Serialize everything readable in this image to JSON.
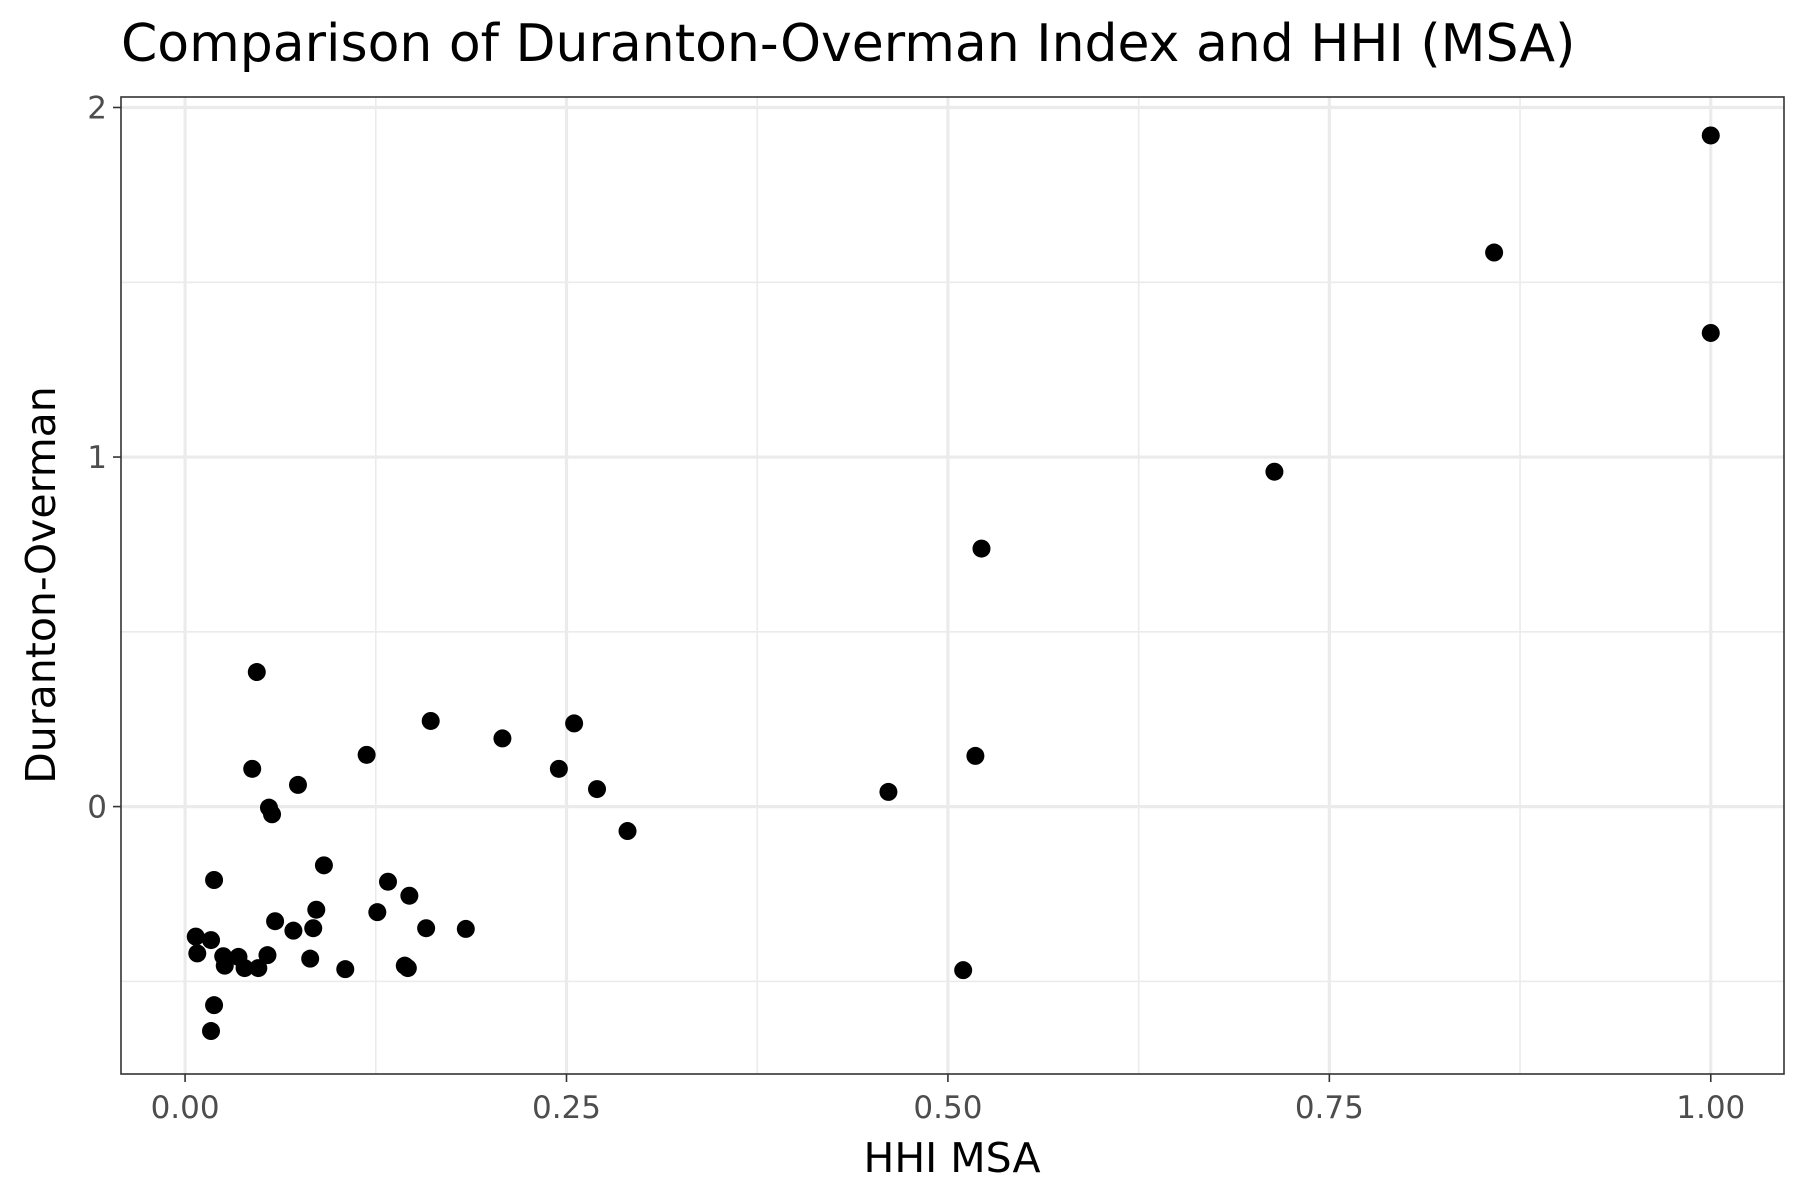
{
  "chart_data": {
    "type": "scatter",
    "title": "Comparison of Duranton-Overman Index and HHI (MSA)",
    "xlabel": "HHI MSA",
    "ylabel": "Duranton-Overman",
    "xlim": [
      -0.042,
      1.048
    ],
    "ylim": [
      -0.765,
      2.03
    ],
    "x_ticks": [
      0.0,
      0.25,
      0.5,
      0.75,
      1.0
    ],
    "x_tick_labels": [
      "0.00",
      "0.25",
      "0.50",
      "0.75",
      "1.00"
    ],
    "x_minor_ticks": [
      0.125,
      0.375,
      0.625,
      0.875
    ],
    "y_ticks": [
      0,
      1,
      2
    ],
    "y_tick_labels": [
      "0",
      "1",
      "2"
    ],
    "y_minor_ticks": [
      -0.5,
      0.5,
      1.5
    ],
    "grid": true,
    "point_color": "#000000",
    "points": [
      {
        "x": 1.0,
        "y": 1.92
      },
      {
        "x": 0.858,
        "y": 1.585
      },
      {
        "x": 1.0,
        "y": 1.355
      },
      {
        "x": 0.714,
        "y": 0.958
      },
      {
        "x": 0.522,
        "y": 0.738
      },
      {
        "x": 0.518,
        "y": 0.145
      },
      {
        "x": 0.461,
        "y": 0.042
      },
      {
        "x": 0.51,
        "y": -0.468
      },
      {
        "x": 0.047,
        "y": 0.385
      },
      {
        "x": 0.161,
        "y": 0.245
      },
      {
        "x": 0.255,
        "y": 0.238
      },
      {
        "x": 0.208,
        "y": 0.195
      },
      {
        "x": 0.119,
        "y": 0.148
      },
      {
        "x": 0.044,
        "y": 0.108
      },
      {
        "x": 0.245,
        "y": 0.108
      },
      {
        "x": 0.074,
        "y": 0.062
      },
      {
        "x": 0.27,
        "y": 0.05
      },
      {
        "x": 0.055,
        "y": -0.003
      },
      {
        "x": 0.057,
        "y": -0.022
      },
      {
        "x": 0.29,
        "y": -0.07
      },
      {
        "x": 0.091,
        "y": -0.168
      },
      {
        "x": 0.019,
        "y": -0.21
      },
      {
        "x": 0.133,
        "y": -0.215
      },
      {
        "x": 0.147,
        "y": -0.255
      },
      {
        "x": 0.086,
        "y": -0.295
      },
      {
        "x": 0.126,
        "y": -0.302
      },
      {
        "x": 0.059,
        "y": -0.328
      },
      {
        "x": 0.084,
        "y": -0.348
      },
      {
        "x": 0.158,
        "y": -0.348
      },
      {
        "x": 0.184,
        "y": -0.35
      },
      {
        "x": 0.071,
        "y": -0.355
      },
      {
        "x": 0.007,
        "y": -0.372
      },
      {
        "x": 0.017,
        "y": -0.382
      },
      {
        "x": 0.008,
        "y": -0.42
      },
      {
        "x": 0.054,
        "y": -0.425
      },
      {
        "x": 0.025,
        "y": -0.428
      },
      {
        "x": 0.035,
        "y": -0.43
      },
      {
        "x": 0.082,
        "y": -0.435
      },
      {
        "x": 0.026,
        "y": -0.455
      },
      {
        "x": 0.039,
        "y": -0.462
      },
      {
        "x": 0.048,
        "y": -0.462
      },
      {
        "x": 0.144,
        "y": -0.455
      },
      {
        "x": 0.146,
        "y": -0.462
      },
      {
        "x": 0.105,
        "y": -0.465
      },
      {
        "x": 0.019,
        "y": -0.568
      },
      {
        "x": 0.017,
        "y": -0.642
      }
    ]
  }
}
